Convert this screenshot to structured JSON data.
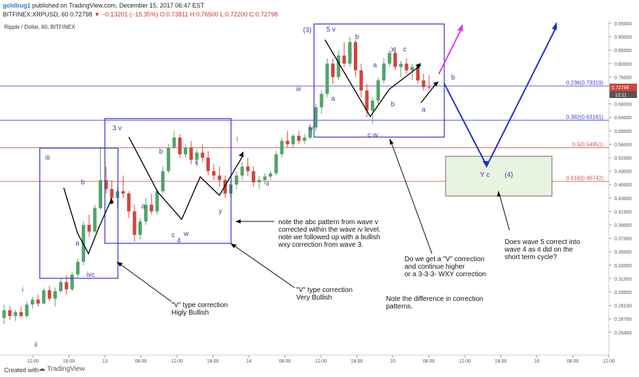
{
  "header": {
    "author": "goldbug1",
    "published_text": "published on TradingView.com, December 15, 2017 06:47 EST",
    "symbol_line": "BITFINEX:XRPUSD, 60",
    "last": "0.72798",
    "change": "−0.13201 (−15.35%)",
    "ohlc": "O:0.73811 H:0.76500 L:0.72200 C:0.72798"
  },
  "legend_title": "Ripple / Dollar, 60, BITFINEX",
  "chart_data": {
    "type": "candlestick",
    "title": "Ripple / Dollar, 60, BITFINEX",
    "y_ticks": [
      "0.95000",
      "0.90000",
      "0.85000",
      "0.80000",
      "0.76000",
      "0.72000",
      "0.68000",
      "0.64000",
      "0.60000",
      "0.56000",
      "0.52000",
      "0.49000",
      "0.46000",
      "0.43000",
      "0.41000",
      "0.39000",
      "0.37000",
      "0.35000",
      "0.33000",
      "0.31000",
      "0.29500",
      "0.28100",
      "0.26700",
      "0.25400"
    ],
    "x_ticks": [
      "12:00",
      "18:00",
      "13",
      "06:00",
      "12:00",
      "18:00",
      "14",
      "06:00",
      "12:00",
      "18:00",
      "15",
      "06:00",
      "12:00",
      "18:00",
      "16",
      "06:00",
      "12:00"
    ],
    "price_label": "0.72798",
    "time_label": "12:11",
    "fib_levels": [
      {
        "label": "0.236(0.73319)",
        "price": 0.73319,
        "color": "#3b3bc8"
      },
      {
        "label": "0.382(0.63161)",
        "price": 0.63161,
        "color": "#3b3bc8"
      },
      {
        "label": "0.5(0.54951)",
        "price": 0.54951,
        "color": "#d9534f"
      },
      {
        "label": "0.618(0.46742)",
        "price": 0.46742,
        "color": "#d9534f"
      }
    ],
    "candles": [
      [
        0.268,
        0.282,
        0.262,
        0.276
      ],
      [
        0.276,
        0.28,
        0.266,
        0.27
      ],
      [
        0.27,
        0.276,
        0.265,
        0.274
      ],
      [
        0.274,
        0.28,
        0.268,
        0.27
      ],
      [
        0.27,
        0.285,
        0.268,
        0.282
      ],
      [
        0.282,
        0.29,
        0.278,
        0.287
      ],
      [
        0.287,
        0.292,
        0.28,
        0.283
      ],
      [
        0.283,
        0.3,
        0.282,
        0.297
      ],
      [
        0.297,
        0.302,
        0.285,
        0.288
      ],
      [
        0.288,
        0.3,
        0.28,
        0.296
      ],
      [
        0.296,
        0.31,
        0.294,
        0.306
      ],
      [
        0.306,
        0.315,
        0.292,
        0.298
      ],
      [
        0.298,
        0.32,
        0.296,
        0.316
      ],
      [
        0.316,
        0.34,
        0.312,
        0.335
      ],
      [
        0.335,
        0.395,
        0.33,
        0.39
      ],
      [
        0.39,
        0.405,
        0.372,
        0.38
      ],
      [
        0.38,
        0.42,
        0.378,
        0.415
      ],
      [
        0.415,
        0.55,
        0.412,
        0.47
      ],
      [
        0.47,
        0.5,
        0.44,
        0.45
      ],
      [
        0.45,
        0.47,
        0.42,
        0.43
      ],
      [
        0.43,
        0.455,
        0.415,
        0.445
      ],
      [
        0.445,
        0.48,
        0.43,
        0.44
      ],
      [
        0.44,
        0.445,
        0.4,
        0.41
      ],
      [
        0.41,
        0.42,
        0.365,
        0.375
      ],
      [
        0.375,
        0.4,
        0.368,
        0.395
      ],
      [
        0.395,
        0.43,
        0.39,
        0.42
      ],
      [
        0.42,
        0.44,
        0.405,
        0.41
      ],
      [
        0.41,
        0.45,
        0.405,
        0.445
      ],
      [
        0.445,
        0.5,
        0.44,
        0.49
      ],
      [
        0.49,
        0.56,
        0.485,
        0.55
      ],
      [
        0.55,
        0.6,
        0.545,
        0.58
      ],
      [
        0.58,
        0.59,
        0.52,
        0.53
      ],
      [
        0.53,
        0.56,
        0.52,
        0.55
      ],
      [
        0.55,
        0.57,
        0.505,
        0.515
      ],
      [
        0.515,
        0.545,
        0.5,
        0.535
      ],
      [
        0.535,
        0.56,
        0.51,
        0.52
      ],
      [
        0.52,
        0.54,
        0.48,
        0.49
      ],
      [
        0.49,
        0.505,
        0.47,
        0.48
      ],
      [
        0.48,
        0.5,
        0.455,
        0.47
      ],
      [
        0.47,
        0.48,
        0.43,
        0.44
      ],
      [
        0.44,
        0.47,
        0.43,
        0.46
      ],
      [
        0.46,
        0.49,
        0.45,
        0.48
      ],
      [
        0.48,
        0.51,
        0.47,
        0.5
      ],
      [
        0.5,
        0.52,
        0.48,
        0.49
      ],
      [
        0.49,
        0.5,
        0.455,
        0.465
      ],
      [
        0.465,
        0.48,
        0.45,
        0.47
      ],
      [
        0.47,
        0.485,
        0.46,
        0.478
      ],
      [
        0.478,
        0.49,
        0.47,
        0.485
      ],
      [
        0.485,
        0.54,
        0.48,
        0.53
      ],
      [
        0.53,
        0.58,
        0.52,
        0.57
      ],
      [
        0.57,
        0.6,
        0.55,
        0.56
      ],
      [
        0.56,
        0.59,
        0.55,
        0.585
      ],
      [
        0.585,
        0.6,
        0.56,
        0.57
      ],
      [
        0.57,
        0.59,
        0.56,
        0.58
      ],
      [
        0.58,
        0.62,
        0.575,
        0.61
      ],
      [
        0.61,
        0.68,
        0.6,
        0.67
      ],
      [
        0.67,
        0.72,
        0.65,
        0.71
      ],
      [
        0.71,
        0.82,
        0.7,
        0.8
      ],
      [
        0.8,
        0.82,
        0.74,
        0.76
      ],
      [
        0.76,
        0.85,
        0.75,
        0.83
      ],
      [
        0.83,
        0.88,
        0.79,
        0.8
      ],
      [
        0.8,
        0.9,
        0.79,
        0.88
      ],
      [
        0.88,
        0.89,
        0.76,
        0.78
      ],
      [
        0.78,
        0.8,
        0.7,
        0.72
      ],
      [
        0.72,
        0.74,
        0.64,
        0.66
      ],
      [
        0.66,
        0.7,
        0.62,
        0.69
      ],
      [
        0.69,
        0.76,
        0.68,
        0.75
      ],
      [
        0.75,
        0.82,
        0.74,
        0.8
      ],
      [
        0.8,
        0.85,
        0.79,
        0.84
      ],
      [
        0.84,
        0.86,
        0.78,
        0.79
      ],
      [
        0.79,
        0.81,
        0.76,
        0.8
      ],
      [
        0.8,
        0.82,
        0.77,
        0.78
      ],
      [
        0.78,
        0.8,
        0.75,
        0.79
      ],
      [
        0.79,
        0.8,
        0.74,
        0.75
      ],
      [
        0.75,
        0.77,
        0.72,
        0.73
      ],
      [
        0.73,
        0.765,
        0.722,
        0.728
      ]
    ]
  },
  "box_labels": {
    "iii_left": "iii",
    "b_left": "b",
    "a_left": "a",
    "ivc": "ivc",
    "i_left": "i",
    "ii_left": "ii",
    "three_v": "3 v",
    "b_mid": "b",
    "a_mid": "a",
    "x_mid": "x",
    "c_mid": "c",
    "w_mid": "w",
    "four": "4",
    "y_mid": "y",
    "i_right": "i",
    "ii_right": "ii",
    "iii_right": "iii",
    "iv_right": "iv",
    "three_paren": "(3)",
    "five_v": "5 v",
    "b_top": "b",
    "a_top": "a",
    "a_top2": "a",
    "cw": "c w",
    "X": "X",
    "c_top": "c",
    "b_top2": "b",
    "a_right": "a",
    "b_far": "b",
    "yc": "Y c",
    "four_paren": "(4)"
  },
  "notes": {
    "n1": [
      "\"V\" type correction",
      "Higly Bullish"
    ],
    "n2": [
      "\"V\" type correction",
      "Very Bullish"
    ],
    "n3": [
      "note the abc pattern from wave v",
      "corrected within the wave iv level.",
      "note we followed up with a bullish",
      "wxy correction from wave 3."
    ],
    "n4": [
      "Do we get a \"V\" correction",
      "and continue higher",
      "or a 3-3-3- WXY correction"
    ],
    "n5": [
      "Note the difference in correction",
      "patterns."
    ],
    "n6": [
      "Does wave 5 correct into",
      "wave 4 as it did on the",
      "short term cycle?"
    ]
  },
  "footer": {
    "created_with": "Created with",
    "brand": "TradingView"
  },
  "colors": {
    "up": "#53a36b",
    "down": "#d0453a",
    "box": "#2a2ad0",
    "arrow_blue": "#1a2fd0",
    "arrow_magenta": "#e33be0",
    "zone_fill": "#e8f3e0"
  }
}
